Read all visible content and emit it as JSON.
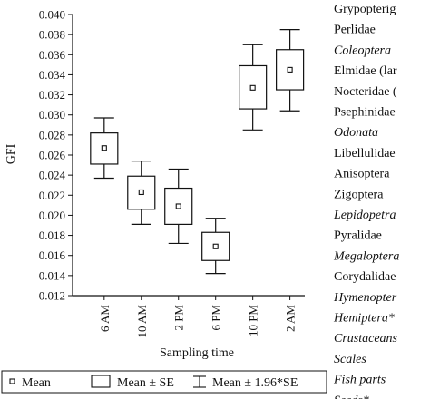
{
  "chart_data": {
    "type": "boxplot",
    "ylabel": "GFI",
    "xlabel": "Sampling time",
    "ylim": [
      0.012,
      0.04
    ],
    "yticks": [
      "0.040",
      "0.038",
      "0.036",
      "0.034",
      "0.032",
      "0.030",
      "0.028",
      "0.026",
      "0.024",
      "0.022",
      "0.020",
      "0.018",
      "0.016",
      "0.014",
      "0.012"
    ],
    "categories": [
      "6 AM",
      "10 AM",
      "2 PM",
      "6 PM",
      "10 PM",
      "2 AM"
    ],
    "series": [
      {
        "name": "Mean",
        "values": [
          0.0267,
          0.0223,
          0.0209,
          0.0169,
          0.0327,
          0.0345
        ]
      },
      {
        "name": "Mean ± SE",
        "low": [
          0.0251,
          0.0206,
          0.0191,
          0.0155,
          0.0306,
          0.0325
        ],
        "high": [
          0.0282,
          0.0239,
          0.0227,
          0.0183,
          0.0349,
          0.0365
        ]
      },
      {
        "name": "Mean ± 1.96*SE",
        "low": [
          0.0237,
          0.0191,
          0.0172,
          0.0142,
          0.0285,
          0.0304
        ],
        "high": [
          0.0297,
          0.0254,
          0.0246,
          0.0197,
          0.037,
          0.0385
        ]
      }
    ],
    "legend": {
      "position": "bottom",
      "items": [
        "Mean",
        "Mean ± SE",
        "Mean ± 1.96*SE"
      ]
    },
    "grid": false
  },
  "side_list": {
    "items": [
      {
        "text": "Grypopterig",
        "italic": false
      },
      {
        "text": "Perlidae",
        "italic": false
      },
      {
        "text": "Coleoptera",
        "italic": true
      },
      {
        "text": "Elmidae (lar",
        "italic": false
      },
      {
        "text": "Nocteridae (",
        "italic": false
      },
      {
        "text": "Psephinidae",
        "italic": false
      },
      {
        "text": "Odonata",
        "italic": true
      },
      {
        "text": "Libellulidae",
        "italic": false
      },
      {
        "text": "Anisoptera",
        "italic": false
      },
      {
        "text": "Zigoptera",
        "italic": false
      },
      {
        "text": "Lepidopetra",
        "italic": true
      },
      {
        "text": "Pyralidae",
        "italic": false
      },
      {
        "text": "Megaloptera",
        "italic": true
      },
      {
        "text": "Corydalidae",
        "italic": false
      },
      {
        "text": "Hymenopter",
        "italic": true
      },
      {
        "text": "Hemiptera*",
        "italic": true
      },
      {
        "text": "Crustaceans",
        "italic": true
      },
      {
        "text": "Scales",
        "italic": true
      },
      {
        "text": "Fish parts",
        "italic": true
      },
      {
        "text": "Seeds*",
        "italic": true
      }
    ]
  }
}
